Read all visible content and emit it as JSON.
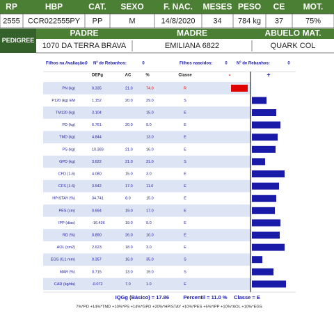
{
  "header": {
    "labels": [
      "RP",
      "HBP",
      "CAT.",
      "SEXO",
      "F. NAC.",
      "MESES",
      "PESO",
      "CE",
      "MOT."
    ],
    "values": [
      "2555",
      "CCR022555PY",
      "PP",
      "M",
      "14/8/2020",
      "34",
      "784 kg",
      "37",
      "75%"
    ]
  },
  "pedigree": {
    "label": "PEDIGREE",
    "labels": [
      "PADRE",
      "MADRE",
      "ABUELO MAT."
    ],
    "values": [
      "1070 DA TERRA BRAVA",
      "EMILIANA 6822",
      "QUARK COL"
    ]
  },
  "info": [
    "Filhos na Avaliação:",
    "0",
    "Nº de Rebanhos:",
    "0",
    "Filhos nascidos:",
    "0",
    "Nº de Rebanhos:",
    "0"
  ],
  "table": {
    "columns": [
      "DEPg",
      "AC",
      "%",
      "Classe",
      "-",
      "+"
    ],
    "rows": [
      {
        "trait": "PN (kg)",
        "depg": "0.335",
        "ac": "21.0",
        "pct": "74.0",
        "classe": "R",
        "color": "#e00000"
      },
      {
        "trait": "P120 (kg) EM",
        "depg": "1.152",
        "ac": "20.0",
        "pct": "29.0",
        "classe": "S",
        "color": "#1a1aa8"
      },
      {
        "trait": "TM120 (kg)",
        "depg": "3.104",
        "ac": null,
        "pct": "15.0",
        "classe": "E",
        "color": "#1a1aa8"
      },
      {
        "trait": "PD (kg)",
        "depg": "6.761",
        "ac": "20.0",
        "pct": "9.0",
        "classe": "E",
        "color": "#1a1aa8"
      },
      {
        "trait": "TMD (kg)",
        "depg": "4.844",
        "ac": null,
        "pct": "13.0",
        "classe": "E",
        "color": "#1a1aa8"
      },
      {
        "trait": "PS (kg)",
        "depg": "10.383",
        "ac": "21.0",
        "pct": "16.0",
        "classe": "E",
        "color": "#1a1aa8"
      },
      {
        "trait": "GPD (kg)",
        "depg": "3.622",
        "ac": "21.0",
        "pct": "31.0",
        "classe": "S",
        "color": "#1a1aa8"
      },
      {
        "trait": "CFD (1-6)",
        "depg": "4.080",
        "ac": "15.0",
        "pct": "3.0",
        "classe": "E",
        "color": "#1a1aa8"
      },
      {
        "trait": "CFS (1-6)",
        "depg": "3.542",
        "ac": "17.0",
        "pct": "11.0",
        "classe": "E",
        "color": "#1a1aa8"
      },
      {
        "trait": "HP/STAY (%)",
        "depg": "34.741",
        "ac": "8.0",
        "pct": "15.0",
        "classe": "E",
        "color": "#1a1aa8"
      },
      {
        "trait": "PES (cm)",
        "depg": "0.694",
        "ac": "19.0",
        "pct": "17.0",
        "classe": "E",
        "color": "#1a1aa8"
      },
      {
        "trait": "IPP (dias)",
        "depg": "-16.436",
        "ac": "19.0",
        "pct": "9.0",
        "classe": "E",
        "color": "#1a1aa8"
      },
      {
        "trait": "RD (%)",
        "depg": "0.890",
        "ac": "26.0",
        "pct": "10.0",
        "classe": "E",
        "color": "#1a1aa8"
      },
      {
        "trait": "AOL (cm2)",
        "depg": "2.623",
        "ac": "18.0",
        "pct": "3.0",
        "classe": "E",
        "color": "#1a1aa8"
      },
      {
        "trait": "EGS (0,1 mm)",
        "depg": "0.357",
        "ac": "16.0",
        "pct": "35.0",
        "classe": "S",
        "color": "#1a1aa8"
      },
      {
        "trait": "MAR (%)",
        "depg": "0.715",
        "ac": "13.0",
        "pct": "19.0",
        "classe": "S",
        "color": "#1a1aa8"
      },
      {
        "trait": "CAR (kg/da)",
        "depg": "-0.072",
        "ac": "7.0",
        "pct": "1.0",
        "classe": "E",
        "color": "#1a1aa8"
      }
    ]
  },
  "footer": {
    "summary": [
      "IQGg (Básico) = 17.86",
      "Percentil = 11.0 %",
      "Classe = E"
    ],
    "formula": "7%*PD +14%*TMD +10%*PS +14%*GPD +20%*HP/STAY +10%*PES +5%*IPP +10%*AOL +10%*EGS"
  }
}
